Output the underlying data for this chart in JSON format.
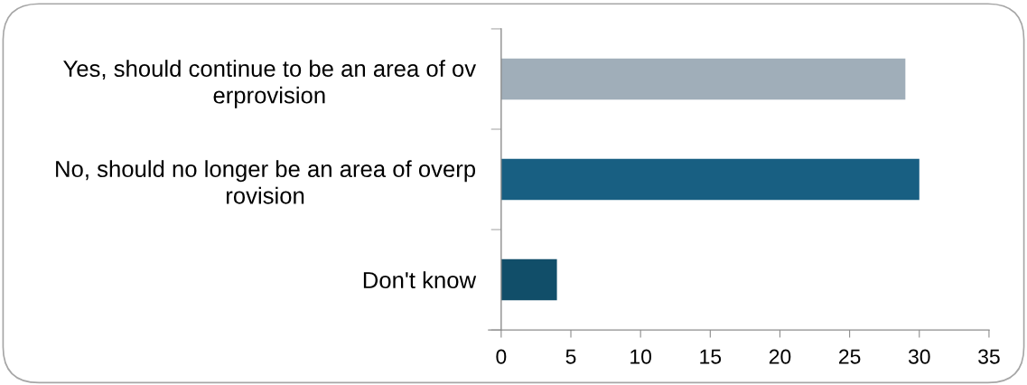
{
  "chart_data": {
    "type": "bar",
    "orientation": "horizontal",
    "categories": [
      "Yes, should continue to be an area of ov\nerprovision",
      "No, should no longer be an area of overp\nrovision",
      "Don't know"
    ],
    "values": [
      29,
      30,
      4
    ],
    "colors": [
      "#a0aeb9",
      "#185f82",
      "#114e69"
    ],
    "xlim": [
      0,
      35
    ],
    "xticks": [
      0,
      5,
      10,
      15,
      20,
      25,
      30,
      35
    ],
    "grid": false
  }
}
